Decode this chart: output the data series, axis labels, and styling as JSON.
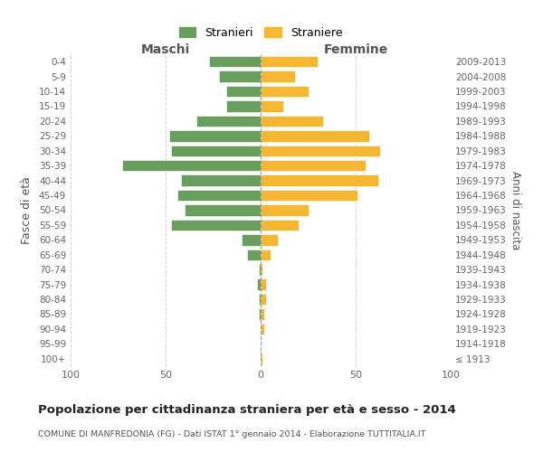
{
  "age_groups": [
    "0-4",
    "5-9",
    "10-14",
    "15-19",
    "20-24",
    "25-29",
    "30-34",
    "35-39",
    "40-44",
    "45-49",
    "50-54",
    "55-59",
    "60-64",
    "65-69",
    "70-74",
    "75-79",
    "80-84",
    "85-89",
    "90-94",
    "95-99",
    "100+"
  ],
  "birth_years": [
    "2009-2013",
    "2004-2008",
    "1999-2003",
    "1994-1998",
    "1989-1993",
    "1984-1988",
    "1979-1983",
    "1974-1978",
    "1969-1973",
    "1964-1968",
    "1959-1963",
    "1954-1958",
    "1949-1953",
    "1944-1948",
    "1939-1943",
    "1934-1938",
    "1929-1933",
    "1924-1928",
    "1919-1923",
    "1914-1918",
    "≤ 1913"
  ],
  "maschi": [
    27,
    22,
    18,
    18,
    34,
    48,
    47,
    73,
    42,
    44,
    40,
    47,
    10,
    7,
    1,
    2,
    1,
    1,
    0,
    0,
    0
  ],
  "femmine": [
    30,
    18,
    25,
    12,
    33,
    57,
    63,
    55,
    62,
    51,
    25,
    20,
    9,
    5,
    1,
    3,
    3,
    2,
    2,
    0,
    1
  ],
  "color_maschi": "#6a9e5e",
  "color_femmine": "#f5b731",
  "title": "Popolazione per cittadinanza straniera per età e sesso - 2014",
  "subtitle": "COMUNE DI MANFREDONIA (FG) - Dati ISTAT 1° gennaio 2014 - Elaborazione TUTTITALIA.IT",
  "ylabel_left": "Fasce di età",
  "ylabel_right": "Anni di nascita",
  "xlabel_left": "Maschi",
  "xlabel_right": "Femmine",
  "legend_maschi": "Stranieri",
  "legend_femmine": "Straniere",
  "xlim": 100,
  "background_color": "#ffffff",
  "grid_color": "#cccccc"
}
